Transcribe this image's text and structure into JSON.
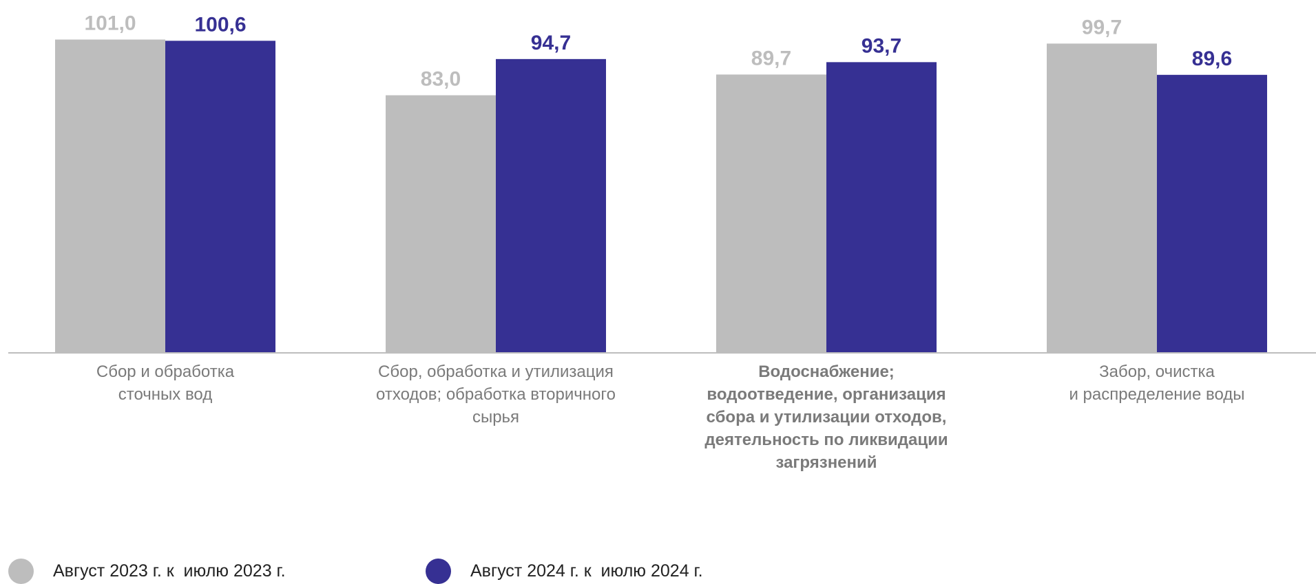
{
  "chart_data": {
    "type": "bar",
    "categories": [
      "Сбор и обработка\nсточных вод",
      "Сбор, обработка и утилизация\nотходов; обработка вторичного\nсырья",
      "Водоснабжение;\nводоотведение, организация\nсбора и утилизации отходов,\nдеятельность по ликвидации\nзагрязнений",
      "Забор, очистка\nи распределение воды"
    ],
    "category_bold": [
      false,
      false,
      true,
      false
    ],
    "series": [
      {
        "name": "Август 2023 г. к  июлю 2023 г.",
        "values": [
          101.0,
          83.0,
          89.7,
          99.7
        ],
        "labels": [
          "101,0",
          "83,0",
          "89,7",
          "99,7"
        ],
        "color": "#bdbdbd",
        "label_color": "#bdbdbd"
      },
      {
        "name": "Август 2024 г. к  июлю 2024 г.",
        "values": [
          100.6,
          94.7,
          93.7,
          89.6
        ],
        "labels": [
          "100,6",
          "94,7",
          "93,7",
          "89,6"
        ],
        "color": "#363093",
        "label_color": "#363093"
      }
    ],
    "ylim": [
      0,
      110
    ],
    "grid": false,
    "legend_position": "bottom-left",
    "axis_color": "#bdbdbd",
    "title": "",
    "xlabel": "",
    "ylabel": ""
  }
}
